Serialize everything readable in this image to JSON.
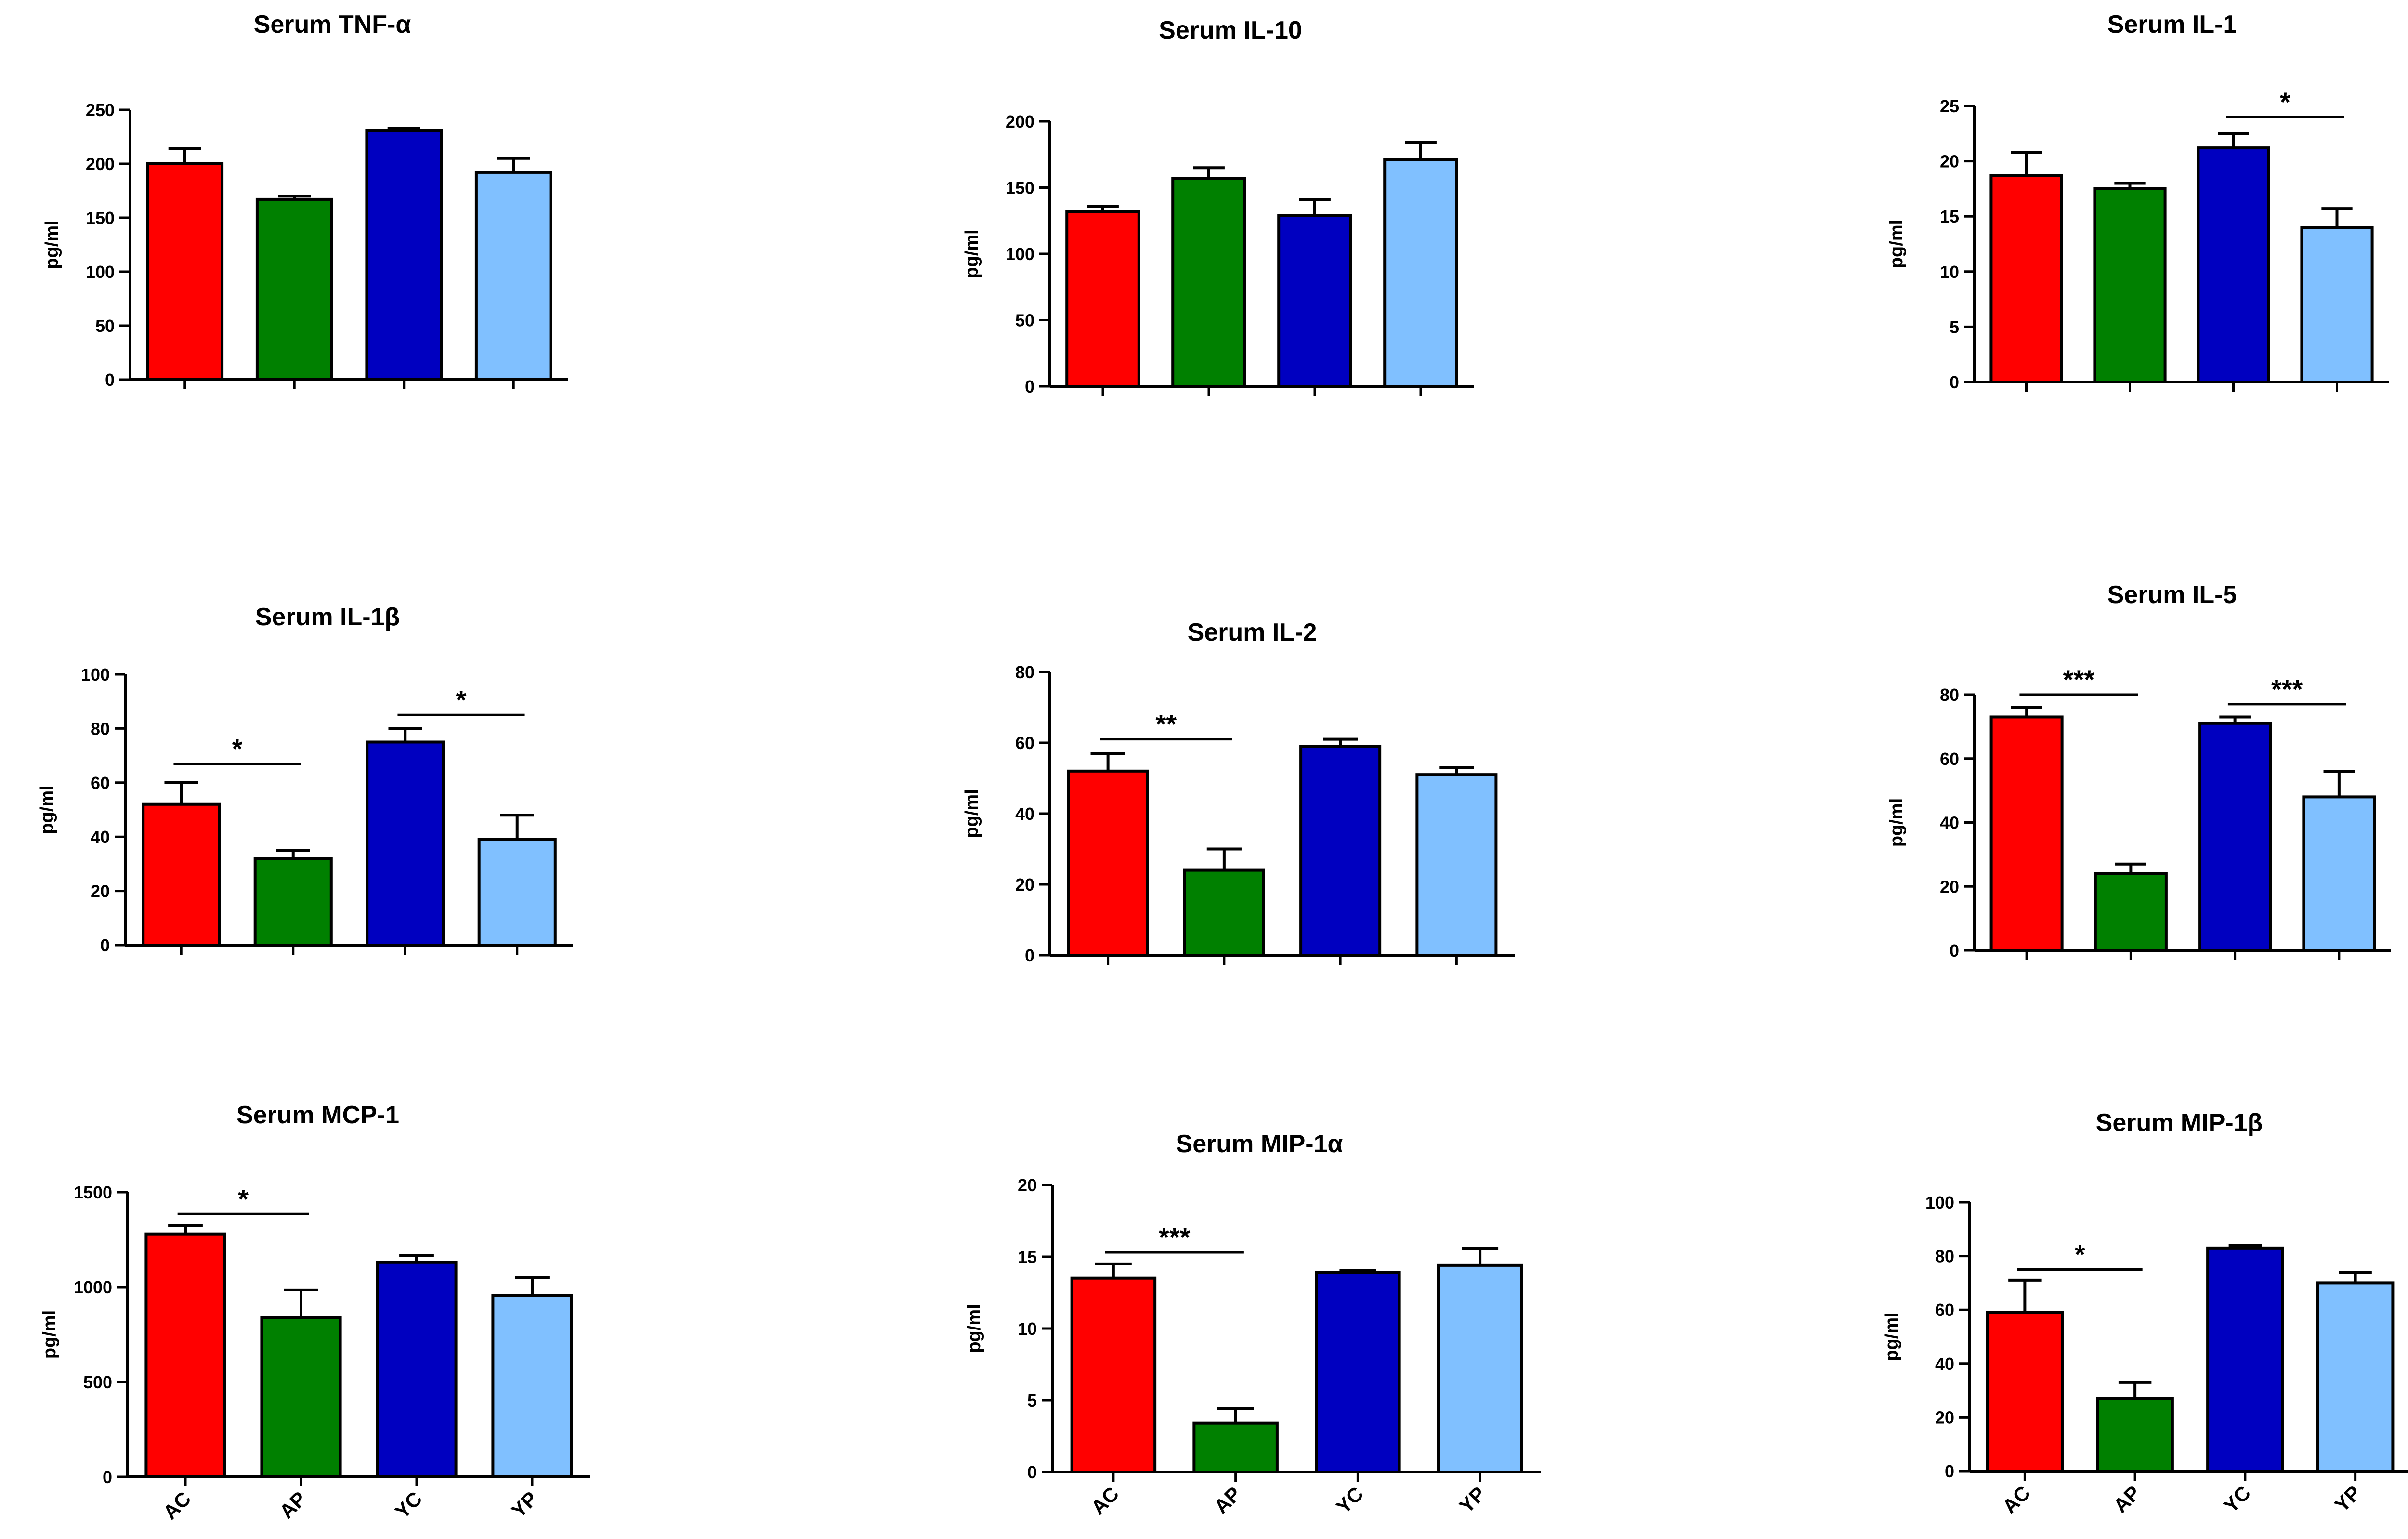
{
  "chart_data": [
    {
      "type": "bar",
      "title": "Serum TNF-α",
      "ylabel": "pg/ml",
      "ylim": [
        0,
        250
      ],
      "yticks": [
        "0",
        "50",
        "100",
        "150",
        "200",
        "250"
      ],
      "categories": [
        "AC",
        "AP",
        "YC",
        "YP"
      ],
      "show_category_labels": false,
      "values": [
        200,
        167,
        231,
        192
      ],
      "errors": [
        14,
        3,
        2,
        13
      ],
      "significance": []
    },
    {
      "type": "bar",
      "title": "Serum IL-10",
      "ylabel": "pg/ml",
      "ylim": [
        0,
        200
      ],
      "yticks": [
        "0",
        "50",
        "100",
        "150",
        "200"
      ],
      "categories": [
        "AC",
        "AP",
        "YC",
        "YP"
      ],
      "show_category_labels": false,
      "values": [
        132,
        157,
        129,
        171
      ],
      "errors": [
        4,
        8,
        12,
        13
      ],
      "significance": []
    },
    {
      "type": "bar",
      "title": "Serum IL-1",
      "ylabel": "pg/ml",
      "ylim": [
        0,
        25
      ],
      "yticks": [
        "0",
        "5",
        "10",
        "15",
        "20",
        "25"
      ],
      "categories": [
        "AC",
        "AP",
        "YC",
        "YP"
      ],
      "show_category_labels": false,
      "values": [
        18.7,
        17.5,
        21.2,
        14
      ],
      "errors": [
        2.1,
        0.5,
        1.3,
        1.7
      ],
      "significance": [
        {
          "from": 2,
          "to": 3,
          "level": "*",
          "y": 24
        }
      ]
    },
    {
      "type": "bar",
      "title": "Serum IL-1β",
      "ylabel": "pg/ml",
      "ylim": [
        0,
        100
      ],
      "yticks": [
        "0",
        "20",
        "40",
        "60",
        "80",
        "100"
      ],
      "categories": [
        "AC",
        "AP",
        "YC",
        "YP"
      ],
      "show_category_labels": false,
      "values": [
        52,
        32,
        75,
        39
      ],
      "errors": [
        8,
        3,
        5,
        9
      ],
      "significance": [
        {
          "from": 0,
          "to": 1,
          "level": "*",
          "y": 67
        },
        {
          "from": 2,
          "to": 3,
          "level": "*",
          "y": 85
        }
      ]
    },
    {
      "type": "bar",
      "title": "Serum IL-2",
      "ylabel": "pg/ml",
      "ylim": [
        0,
        80
      ],
      "yticks": [
        "0",
        "20",
        "40",
        "60",
        "80"
      ],
      "categories": [
        "AC",
        "AP",
        "YC",
        "YP"
      ],
      "show_category_labels": false,
      "values": [
        52,
        24,
        59,
        51
      ],
      "errors": [
        5,
        6,
        2,
        2
      ],
      "significance": [
        {
          "from": 0,
          "to": 1,
          "level": "**",
          "y": 61
        }
      ]
    },
    {
      "type": "bar",
      "title": "Serum IL-5",
      "ylabel": "pg/ml",
      "ylim": [
        0,
        80
      ],
      "yticks": [
        "0",
        "20",
        "40",
        "60",
        "80"
      ],
      "categories": [
        "AC",
        "AP",
        "YC",
        "YP"
      ],
      "show_category_labels": false,
      "values": [
        73,
        24,
        71,
        48
      ],
      "errors": [
        3,
        3,
        2,
        8
      ],
      "significance": [
        {
          "from": 0,
          "to": 1,
          "level": "***",
          "y": 80
        },
        {
          "from": 2,
          "to": 3,
          "level": "***",
          "y": 77
        }
      ]
    },
    {
      "type": "bar",
      "title": "Serum MCP-1",
      "ylabel": "pg/ml",
      "ylim": [
        0,
        1500
      ],
      "yticks": [
        "0",
        "500",
        "1000",
        "1500"
      ],
      "categories": [
        "AC",
        "AP",
        "YC",
        "YP"
      ],
      "show_category_labels": true,
      "values": [
        1280,
        840,
        1130,
        955
      ],
      "errors": [
        45,
        145,
        35,
        95
      ],
      "significance": [
        {
          "from": 0,
          "to": 1,
          "level": "*",
          "y": 1385
        }
      ]
    },
    {
      "type": "bar",
      "title": "Serum MIP-1α",
      "ylabel": "pg/ml",
      "ylim": [
        0,
        20
      ],
      "yticks": [
        "0",
        "5",
        "10",
        "15",
        "20"
      ],
      "categories": [
        "AC",
        "AP",
        "YC",
        "YP"
      ],
      "show_category_labels": true,
      "values": [
        13.5,
        3.4,
        13.9,
        14.4
      ],
      "errors": [
        1,
        1,
        0.15,
        1.2
      ],
      "significance": [
        {
          "from": 0,
          "to": 1,
          "level": "***",
          "y": 15.3
        }
      ]
    },
    {
      "type": "bar",
      "title": "Serum MIP-1β",
      "ylabel": "pg/ml",
      "ylim": [
        0,
        100
      ],
      "yticks": [
        "0",
        "20",
        "40",
        "60",
        "80",
        "100"
      ],
      "categories": [
        "AC",
        "AP",
        "YC",
        "YP"
      ],
      "show_category_labels": true,
      "values": [
        59,
        27,
        83,
        70
      ],
      "errors": [
        12,
        6,
        1,
        4
      ],
      "significance": [
        {
          "from": 0,
          "to": 1,
          "level": "*",
          "y": 75
        }
      ]
    }
  ],
  "colors": {
    "series": [
      "#ff0000",
      "#008000",
      "#0000c0",
      "#80c0ff"
    ],
    "axis": "#000000"
  }
}
